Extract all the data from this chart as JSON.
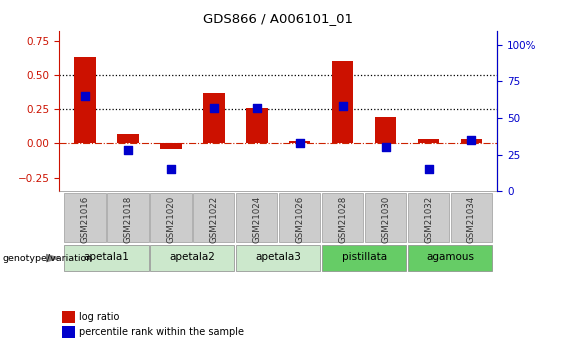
{
  "title": "GDS866 / A006101_01",
  "samples": [
    "GSM21016",
    "GSM21018",
    "GSM21020",
    "GSM21022",
    "GSM21024",
    "GSM21026",
    "GSM21028",
    "GSM21030",
    "GSM21032",
    "GSM21034"
  ],
  "log_ratio": [
    0.63,
    0.07,
    -0.04,
    0.37,
    0.26,
    0.02,
    0.6,
    0.19,
    0.03,
    0.03
  ],
  "percentile_rank": [
    65,
    28,
    15,
    57,
    57,
    33,
    58,
    30,
    15,
    35
  ],
  "groups": [
    {
      "label": "apetala1",
      "indices": [
        0,
        1
      ],
      "color": "#cce8cc"
    },
    {
      "label": "apetala2",
      "indices": [
        2,
        3
      ],
      "color": "#cce8cc"
    },
    {
      "label": "apetala3",
      "indices": [
        4,
        5
      ],
      "color": "#cce8cc"
    },
    {
      "label": "pistillata",
      "indices": [
        6,
        7
      ],
      "color": "#66cc66"
    },
    {
      "label": "agamous",
      "indices": [
        8,
        9
      ],
      "color": "#66cc66"
    }
  ],
  "bar_color": "#cc1100",
  "dot_color": "#0000cc",
  "zero_line_color": "#cc2200",
  "dotted_line_color": "#000000",
  "ylim_left": [
    -0.35,
    0.82
  ],
  "ylim_right": [
    0,
    109.3
  ],
  "yticks_left": [
    -0.25,
    0.0,
    0.25,
    0.5,
    0.75
  ],
  "yticks_right": [
    0,
    25,
    50,
    75,
    100
  ],
  "ylabel_left_color": "#cc1100",
  "ylabel_right_color": "#0000cc",
  "hlines": [
    0.25,
    0.5
  ],
  "legend_labels": [
    "log ratio",
    "percentile rank within the sample"
  ],
  "legend_colors": [
    "#cc1100",
    "#0000cc"
  ],
  "genotype_label": "genotype/variation",
  "bar_width": 0.5,
  "dot_size": 28,
  "sample_box_color": "#cccccc",
  "sample_box_edge": "#888888"
}
